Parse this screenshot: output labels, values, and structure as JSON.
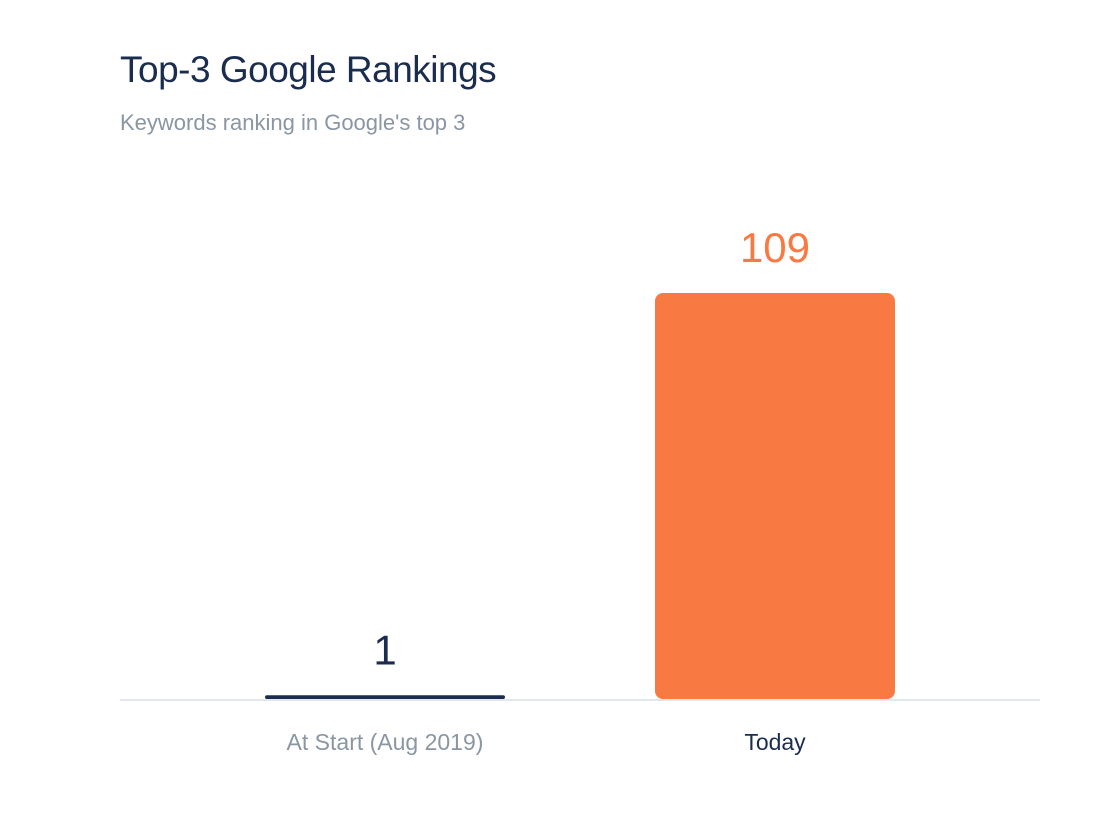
{
  "chart_data": {
    "type": "bar",
    "title": "Top-3 Google Rankings",
    "subtitle": "Keywords ranking in Google's top 3",
    "categories": [
      "At Start (Aug 2019)",
      "Today"
    ],
    "values": [
      1,
      109
    ],
    "colors": [
      "#1b2d4f",
      "#f87a42"
    ]
  }
}
